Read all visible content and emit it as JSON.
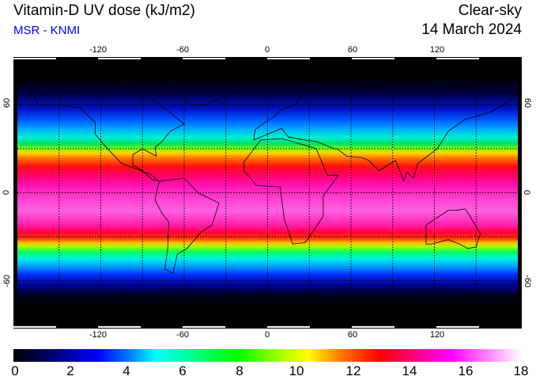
{
  "header": {
    "title": "Vitamin-D UV dose (kJ/m2)",
    "source": "MSR - KNMI",
    "mode": "Clear-sky",
    "date": "14 March 2024"
  },
  "map": {
    "lon_labels": [
      "-120",
      "-60",
      "0",
      "60",
      "120"
    ],
    "lat_labels": [
      "60",
      "0",
      "-60"
    ]
  },
  "colorbar": {
    "unit": "kJ/m2",
    "min": 0,
    "max": 18,
    "labels": [
      "0",
      "2",
      "4",
      "6",
      "8",
      "10",
      "12",
      "14",
      "16",
      "18"
    ],
    "colors": [
      "#000000",
      "#0000ff",
      "#00ffff",
      "#00ff00",
      "#ffff00",
      "#ff0000",
      "#ff00ff",
      "#ffffff"
    ]
  }
}
